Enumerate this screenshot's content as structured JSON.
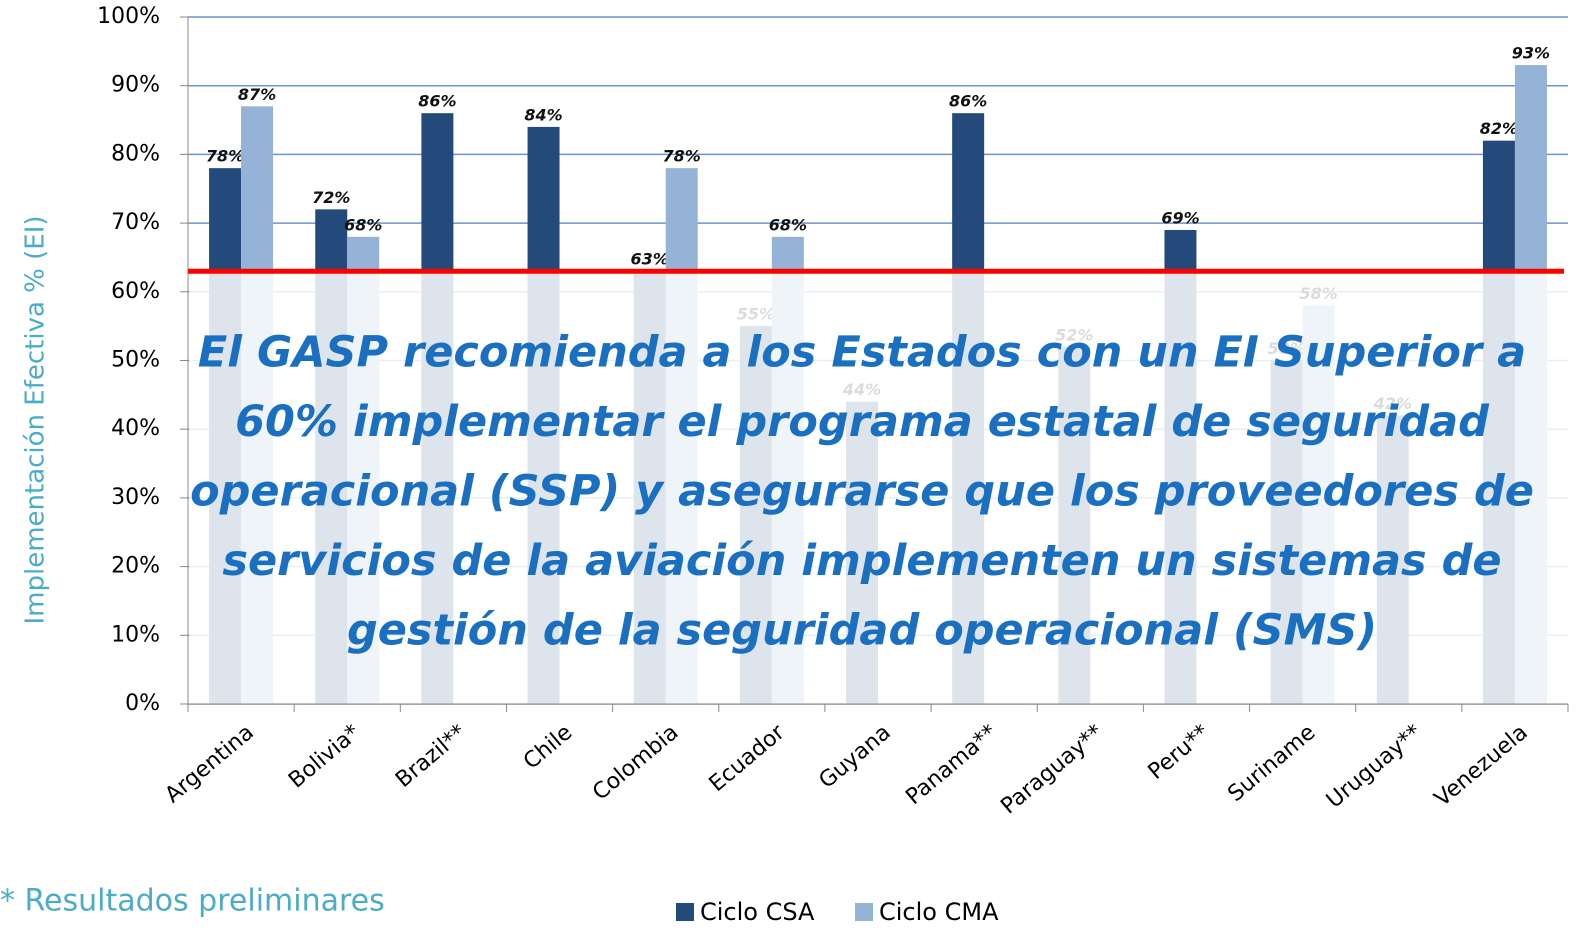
{
  "chart_data": {
    "type": "bar",
    "ylabel": "Implementación Efectiva % (EI)",
    "categories": [
      "Argentina",
      "Bolivia*",
      "Brazil**",
      "Chile",
      "Colombia",
      "Ecuador",
      "Guyana",
      "Panama**",
      "Paraguay**",
      "Peru**",
      "Suriname",
      "Uruguay**",
      "Venezuela"
    ],
    "series": [
      {
        "name": "Ciclo CSA",
        "color": "#244a7c",
        "values": [
          78,
          72,
          86,
          84,
          63,
          55,
          44,
          86,
          52,
          69,
          50,
          42,
          82
        ],
        "value_labels": [
          "78%",
          "72%",
          "86%",
          "84%",
          "63%",
          "55%",
          "44%",
          "86%",
          "52%",
          "69%",
          "50%",
          "42%",
          "82%"
        ]
      },
      {
        "name": "Ciclo CMA",
        "color": "#95b3d7",
        "values": [
          87,
          68,
          null,
          null,
          78,
          68,
          null,
          null,
          null,
          null,
          58,
          null,
          93
        ],
        "value_labels": [
          "87%",
          "68%",
          null,
          null,
          "78%",
          "68%",
          null,
          null,
          null,
          null,
          "58%",
          null,
          "93%"
        ]
      }
    ],
    "ylim": [
      0,
      100
    ],
    "yticks": [
      {
        "value": 0,
        "label": "0%"
      },
      {
        "value": 10,
        "label": "10%"
      },
      {
        "value": 20,
        "label": "20%"
      },
      {
        "value": 30,
        "label": "30%"
      },
      {
        "value": 40,
        "label": "40%"
      },
      {
        "value": 50,
        "label": "50%"
      },
      {
        "value": 60,
        "label": "60%"
      },
      {
        "value": 70,
        "label": "70%"
      },
      {
        "value": 80,
        "label": "80%"
      },
      {
        "value": 90,
        "label": "90%"
      },
      {
        "value": 100,
        "label": "100%"
      }
    ],
    "grid": true,
    "threshold": {
      "value": 63,
      "color": "#ff0000"
    },
    "annotation": [
      "El GASP recomienda a los Estados con un EI Superior a",
      "60% implementar el programa estatal de seguridad",
      "operacional (SSP)  y asegurarse que los proveedores de",
      "servicios de la aviación  implementen un sistemas de",
      "gestión de la seguridad operacional (SMS)"
    ],
    "footnote": "* Resultados preliminares"
  }
}
